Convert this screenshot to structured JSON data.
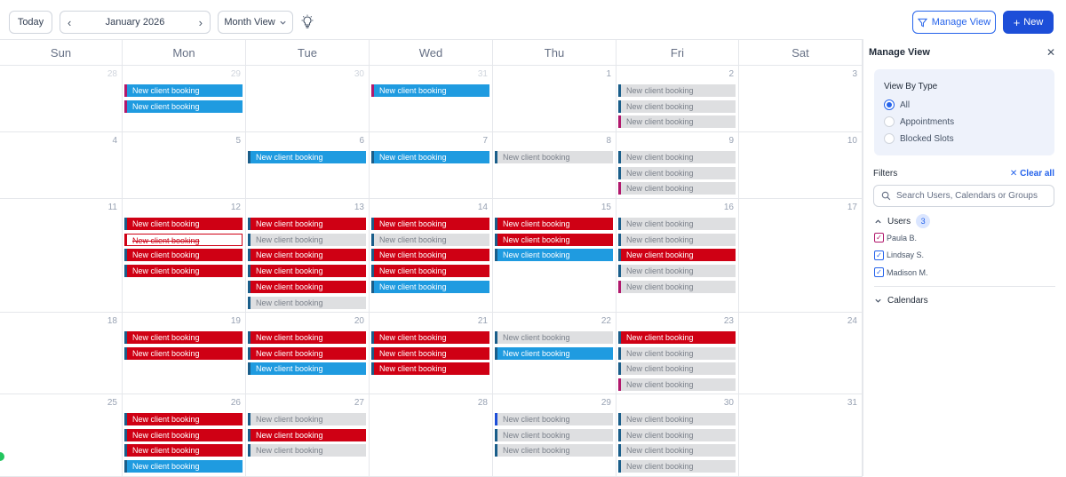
{
  "toolbar": {
    "today_label": "Today",
    "month_label": "January 2026",
    "view_label": "Month View",
    "manage_label": "Manage View",
    "new_label": "New"
  },
  "weekdays": [
    "Sun",
    "Mon",
    "Tue",
    "Wed",
    "Thu",
    "Fri",
    "Sat"
  ],
  "event_label": "New client booking",
  "colors": {
    "blue": "#1f9be0",
    "red": "#cf0014",
    "grey": "#dedfe1",
    "accent": "#2563eb"
  },
  "weeks": [
    [
      {
        "day": "28",
        "faded": true,
        "events": []
      },
      {
        "day": "29",
        "faded": true,
        "events": [
          [
            "blue",
            "#b1186c"
          ],
          [
            "blue",
            "#b1186c"
          ]
        ]
      },
      {
        "day": "30",
        "faded": true,
        "events": []
      },
      {
        "day": "31",
        "faded": true,
        "events": [
          [
            "blue",
            "#b1186c"
          ]
        ]
      },
      {
        "day": "1",
        "events": []
      },
      {
        "day": "2",
        "events": [
          [
            "grey",
            "#1a5e8a"
          ],
          [
            "grey",
            "#1a5e8a"
          ],
          [
            "grey",
            "#b1186c"
          ]
        ]
      },
      {
        "day": "3",
        "events": []
      }
    ],
    [
      {
        "day": "4",
        "events": []
      },
      {
        "day": "5",
        "events": []
      },
      {
        "day": "6",
        "events": [
          [
            "blue",
            "#1a5e8a"
          ]
        ]
      },
      {
        "day": "7",
        "events": [
          [
            "blue",
            "#1a5e8a"
          ]
        ]
      },
      {
        "day": "8",
        "events": [
          [
            "grey",
            "#1a5e8a"
          ]
        ]
      },
      {
        "day": "9",
        "events": [
          [
            "grey",
            "#1a5e8a"
          ],
          [
            "grey",
            "#1a5e8a"
          ],
          [
            "grey",
            "#b1186c"
          ]
        ]
      },
      {
        "day": "10",
        "events": []
      }
    ],
    [
      {
        "day": "11",
        "events": []
      },
      {
        "day": "12",
        "events": [
          [
            "red",
            "#1a5e8a"
          ],
          [
            "strike",
            "#cf0014"
          ],
          [
            "red",
            "#1a5e8a"
          ],
          [
            "red",
            "#1a5e8a"
          ]
        ]
      },
      {
        "day": "13",
        "events": [
          [
            "red",
            "#1a5e8a"
          ],
          [
            "grey",
            "#1a5e8a"
          ],
          [
            "red",
            "#1a5e8a"
          ],
          [
            "red",
            "#1a5e8a"
          ],
          [
            "red",
            "#1a5e8a"
          ],
          [
            "grey",
            "#1a5e8a"
          ]
        ]
      },
      {
        "day": "14",
        "events": [
          [
            "red",
            "#1a5e8a"
          ],
          [
            "grey",
            "#1a5e8a"
          ],
          [
            "red",
            "#1a5e8a"
          ],
          [
            "red",
            "#1a5e8a"
          ],
          [
            "blue",
            "#1a5e8a"
          ]
        ]
      },
      {
        "day": "15",
        "events": [
          [
            "red",
            "#1a5e8a"
          ],
          [
            "red",
            "#1a5e8a"
          ],
          [
            "blue",
            "#1a5e8a"
          ]
        ]
      },
      {
        "day": "16",
        "events": [
          [
            "grey",
            "#1a5e8a"
          ],
          [
            "grey",
            "#1a5e8a"
          ],
          [
            "red",
            "#1a5e8a"
          ],
          [
            "grey",
            "#1a5e8a"
          ],
          [
            "grey",
            "#b1186c"
          ]
        ]
      },
      {
        "day": "17",
        "events": []
      }
    ],
    [
      {
        "day": "18",
        "events": []
      },
      {
        "day": "19",
        "events": [
          [
            "red",
            "#1a5e8a"
          ],
          [
            "red",
            "#1a5e8a"
          ]
        ]
      },
      {
        "day": "20",
        "events": [
          [
            "red",
            "#1a5e8a"
          ],
          [
            "red",
            "#1a5e8a"
          ],
          [
            "blue",
            "#1a5e8a"
          ]
        ]
      },
      {
        "day": "21",
        "events": [
          [
            "red",
            "#1a5e8a"
          ],
          [
            "red",
            "#1a5e8a"
          ],
          [
            "red",
            "#1a5e8a"
          ]
        ]
      },
      {
        "day": "22",
        "events": [
          [
            "grey",
            "#1a5e8a"
          ],
          [
            "blue",
            "#1a5e8a"
          ]
        ]
      },
      {
        "day": "23",
        "events": [
          [
            "red",
            "#1a5e8a"
          ],
          [
            "grey",
            "#1a5e8a"
          ],
          [
            "grey",
            "#1a5e8a"
          ],
          [
            "grey",
            "#b1186c"
          ]
        ]
      },
      {
        "day": "24",
        "events": []
      }
    ],
    [
      {
        "day": "25",
        "events": []
      },
      {
        "day": "26",
        "events": [
          [
            "red",
            "#1a5e8a"
          ],
          [
            "red",
            "#1a5e8a"
          ],
          [
            "red",
            "#1a5e8a"
          ],
          [
            "blue",
            "#1a5e8a"
          ]
        ]
      },
      {
        "day": "27",
        "events": [
          [
            "grey",
            "#1a5e8a"
          ],
          [
            "red",
            "#1a5e8a"
          ],
          [
            "grey",
            "#1a5e8a"
          ]
        ]
      },
      {
        "day": "28",
        "events": []
      },
      {
        "day": "29",
        "events": [
          [
            "grey",
            "#1d4ed8"
          ],
          [
            "grey",
            "#1a5e8a"
          ],
          [
            "grey",
            "#1a5e8a"
          ]
        ]
      },
      {
        "day": "30",
        "events": [
          [
            "grey",
            "#1a5e8a"
          ],
          [
            "grey",
            "#1a5e8a"
          ],
          [
            "grey",
            "#1a5e8a"
          ],
          [
            "grey",
            "#1a5e8a"
          ]
        ]
      },
      {
        "day": "31",
        "events": []
      }
    ]
  ],
  "panel": {
    "title": "Manage View",
    "view_by_type": "View By Type",
    "options": [
      {
        "label": "All",
        "selected": true
      },
      {
        "label": "Appointments",
        "selected": false
      },
      {
        "label": "Blocked Slots",
        "selected": false
      }
    ],
    "filters_label": "Filters",
    "clear_all": "Clear all",
    "search_placeholder": "Search Users, Calendars or Groups",
    "users_label": "Users",
    "users_count": "3",
    "users": [
      {
        "name": "Paula B.",
        "color": "#b1186c"
      },
      {
        "name": "Lindsay S.",
        "color": "#2563eb"
      },
      {
        "name": "Madison M.",
        "color": "#2563eb"
      }
    ],
    "calendars_label": "Calendars"
  }
}
